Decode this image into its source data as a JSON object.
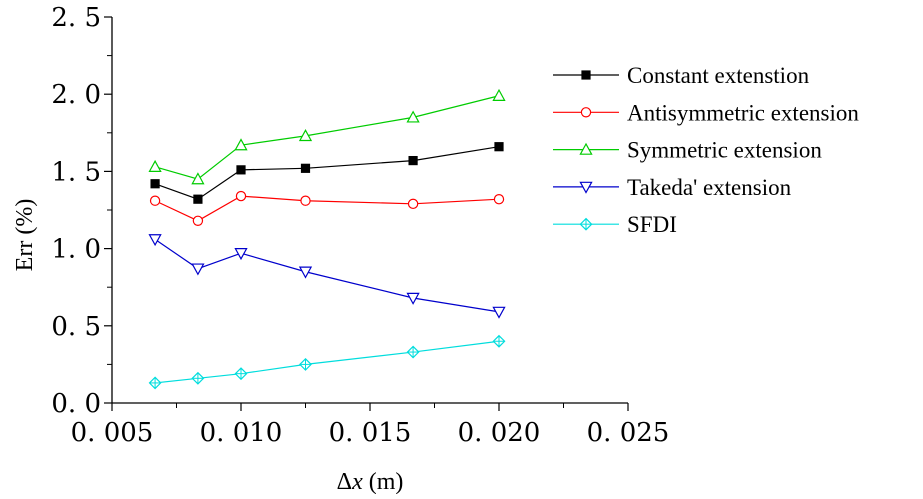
{
  "chart_data": {
    "type": "line",
    "xlabel_parts": {
      "delta": "Δ",
      "var": "x",
      "unit": " (m)"
    },
    "ylabel": "Err (%)",
    "xlim": [
      0.005,
      0.025
    ],
    "ylim": [
      0.0,
      2.5
    ],
    "x_ticks": [
      "0. 005",
      "0. 010",
      "0. 015",
      "0. 020",
      "0. 025"
    ],
    "y_ticks": [
      "0. 0",
      "0. 5",
      "1. 0",
      "1. 5",
      "2. 0",
      "2. 5"
    ],
    "grid": false,
    "legend_position": "right",
    "x": [
      0.00667,
      0.00833,
      0.01,
      0.0125,
      0.01667,
      0.02
    ],
    "series": [
      {
        "name": "Constant extenstion",
        "color": "#000000",
        "marker": "filled-square",
        "values": [
          1.42,
          1.32,
          1.51,
          1.52,
          1.57,
          1.66
        ]
      },
      {
        "name": "Antisymmetric extension",
        "color": "#ff0000",
        "marker": "circle",
        "values": [
          1.31,
          1.18,
          1.34,
          1.31,
          1.29,
          1.32
        ]
      },
      {
        "name": "Symmetric extension",
        "color": "#00cc00",
        "marker": "triangle-up",
        "values": [
          1.53,
          1.45,
          1.67,
          1.73,
          1.85,
          1.99
        ]
      },
      {
        "name": "Takeda' extension",
        "color": "#0000cc",
        "marker": "triangle-down",
        "values": [
          1.06,
          0.87,
          0.97,
          0.85,
          0.68,
          0.59
        ]
      },
      {
        "name": "SFDI",
        "color": "#00dddd",
        "marker": "crossed-diamond",
        "values": [
          0.13,
          0.16,
          0.19,
          0.25,
          0.33,
          0.4
        ]
      }
    ]
  }
}
